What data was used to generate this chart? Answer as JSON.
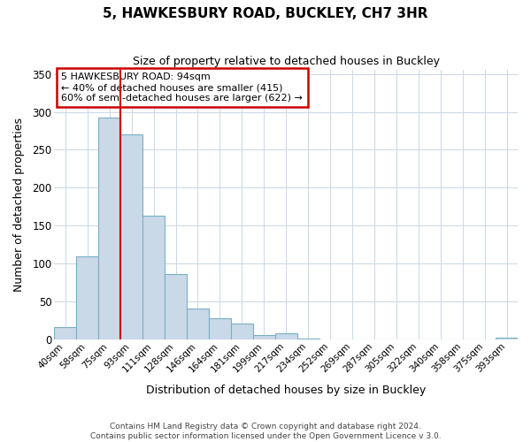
{
  "title": "5, HAWKESBURY ROAD, BUCKLEY, CH7 3HR",
  "subtitle": "Size of property relative to detached houses in Buckley",
  "xlabel": "Distribution of detached houses by size in Buckley",
  "ylabel": "Number of detached properties",
  "bar_labels": [
    "40sqm",
    "58sqm",
    "75sqm",
    "93sqm",
    "111sqm",
    "128sqm",
    "146sqm",
    "164sqm",
    "181sqm",
    "199sqm",
    "217sqm",
    "234sqm",
    "252sqm",
    "269sqm",
    "287sqm",
    "305sqm",
    "322sqm",
    "340sqm",
    "358sqm",
    "375sqm",
    "393sqm"
  ],
  "bar_values": [
    16,
    109,
    292,
    270,
    163,
    86,
    41,
    28,
    21,
    5,
    8,
    1,
    0,
    0,
    0,
    0,
    0,
    0,
    0,
    0,
    2
  ],
  "bar_color": "#c9d9e8",
  "bar_edge_color": "#7aaec8",
  "vline_x_index": 2,
  "vline_color": "#cc0000",
  "annotation_title": "5 HAWKESBURY ROAD: 94sqm",
  "annotation_line1": "← 40% of detached houses are smaller (415)",
  "annotation_line2": "60% of semi-detached houses are larger (622) →",
  "annotation_box_edge": "#cc0000",
  "ylim": [
    0,
    355
  ],
  "yticks": [
    0,
    50,
    100,
    150,
    200,
    250,
    300,
    350
  ],
  "footer1": "Contains HM Land Registry data © Crown copyright and database right 2024.",
  "footer2": "Contains public sector information licensed under the Open Government Licence v 3.0.",
  "background_color": "#ffffff",
  "grid_color": "#c8d8e8"
}
